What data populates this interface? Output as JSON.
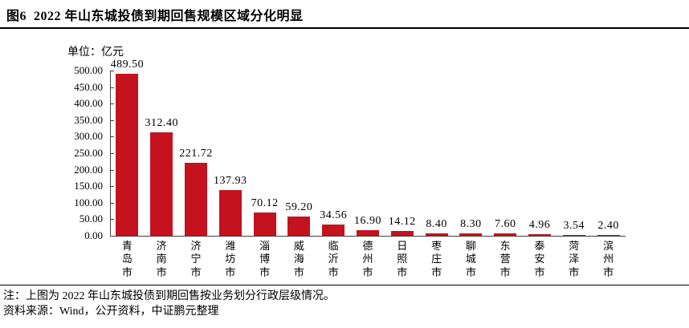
{
  "header": {
    "title": "图6  2022 年山东城投债到期回售规模区域分化明显"
  },
  "chart": {
    "unit_label": "单位：亿元",
    "bar_color": "#C5121F",
    "axis_color": "#404040"
  },
  "chart_data": {
    "type": "bar",
    "title": "2022 年山东城投债到期回售规模区域分化明显",
    "unit": "亿元",
    "categories": [
      "青岛市",
      "济南市",
      "济宁市",
      "潍坊市",
      "淄博市",
      "威海市",
      "临沂市",
      "德州市",
      "日照市",
      "枣庄市",
      "聊城市",
      "东营市",
      "泰安市",
      "菏泽市",
      "滨州市"
    ],
    "values": [
      489.5,
      312.4,
      221.72,
      137.93,
      70.12,
      59.2,
      34.56,
      16.9,
      14.12,
      8.4,
      8.3,
      7.6,
      4.96,
      3.54,
      2.4
    ],
    "data_labels": [
      "489.50",
      "312.40",
      "221.72",
      "137.93",
      "70.12",
      "59.20",
      "34.56",
      "16.90",
      "14.12",
      "8.40",
      "8.30",
      "7.60",
      "4.96",
      "3.54",
      "2.40"
    ],
    "xlabel": "",
    "ylabel": "单位：亿元",
    "ylim": [
      0,
      500
    ],
    "ytick_step": 50,
    "ytick_labels": [
      "0.00",
      "50.00",
      "100.00",
      "150.00",
      "200.00",
      "250.00",
      "300.00",
      "350.00",
      "400.00",
      "450.00",
      "500.00"
    ],
    "grid": false,
    "legend": false,
    "bar_color": "#C5121F"
  },
  "footer": {
    "note": "注：上图为 2022 年山东城投债到期回售按业务划分行政层级情况。",
    "source": "资料来源：Wind，公开资料，中证鹏元整理"
  }
}
